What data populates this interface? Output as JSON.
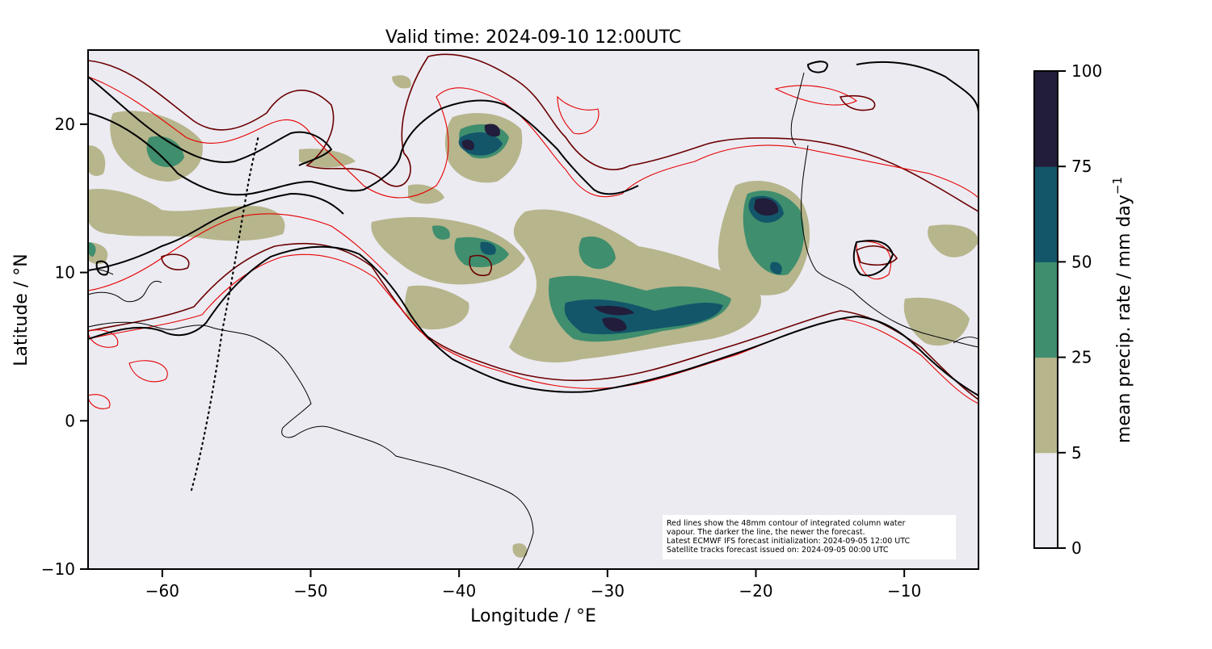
{
  "figure": {
    "title": "Valid time: 2024-09-10 12:00UTC",
    "xlabel": "Longitude / °E",
    "ylabel": "Latitude / °N",
    "xticks": [
      {
        "value": -60,
        "label": "−60"
      },
      {
        "value": -50,
        "label": "−50"
      },
      {
        "value": -40,
        "label": "−40"
      },
      {
        "value": -30,
        "label": "−30"
      },
      {
        "value": -20,
        "label": "−20"
      },
      {
        "value": -10,
        "label": "−10"
      }
    ],
    "yticks": [
      {
        "value": -10,
        "label": "−10"
      },
      {
        "value": 0,
        "label": "0"
      },
      {
        "value": 10,
        "label": "10"
      },
      {
        "value": 20,
        "label": "20"
      }
    ],
    "xlim": [
      -65,
      -5
    ],
    "ylim": [
      -10,
      25
    ],
    "annotation_lines": [
      "Red lines show the 48mm contour of integrated column water",
      "vapour. The darker the line, the newer the forecast.",
      "Latest ECMWF IFS forecast initialization: 2024-09-05 12:00 UTC",
      "Satellite tracks forecast issued on: 2024-09-05 00:00 UTC"
    ],
    "colorbar": {
      "label": "mean precip. rate / mm day",
      "label_superscript": "−1",
      "levels": [
        0,
        5,
        25,
        50,
        75,
        100
      ],
      "level_labels": [
        "0",
        "5",
        "25",
        "50",
        "75",
        "100"
      ],
      "colors": [
        "#ecebf2",
        "#b7b58c",
        "#3f8e6e",
        "#13566a",
        "#221d3a"
      ]
    },
    "colors": {
      "background": "#ecebf2",
      "coastline": "#000000",
      "contour_new": "#6b0000",
      "contour_old": "#e60000",
      "contour_black": "#000000"
    }
  },
  "chart_data": {
    "type": "heatmap",
    "title": "Valid time: 2024-09-10 12:00UTC",
    "xlabel": "Longitude / °E",
    "ylabel": "Latitude / °N",
    "xlim": [
      -65,
      -5
    ],
    "ylim": [
      -10,
      25
    ],
    "satellite_track": [
      [
        -58,
        -4.5
      ],
      [
        -56,
        5
      ],
      [
        -55,
        13
      ],
      [
        -53.8,
        20
      ]
    ],
    "precip_regions": [
      {
        "lon": -31,
        "lat": 7,
        "level": 3
      },
      {
        "lon": -30,
        "lat": 6.5,
        "level": 4
      },
      {
        "lon": -20,
        "lat": 14.5,
        "level": 4
      },
      {
        "lon": -38,
        "lat": 19.5,
        "level": 4
      },
      {
        "lon": -22,
        "lat": 12,
        "level": 2
      },
      {
        "lon": -37,
        "lat": 11,
        "level": 2
      },
      {
        "lon": -60,
        "lat": 18,
        "level": 2
      }
    ]
  }
}
